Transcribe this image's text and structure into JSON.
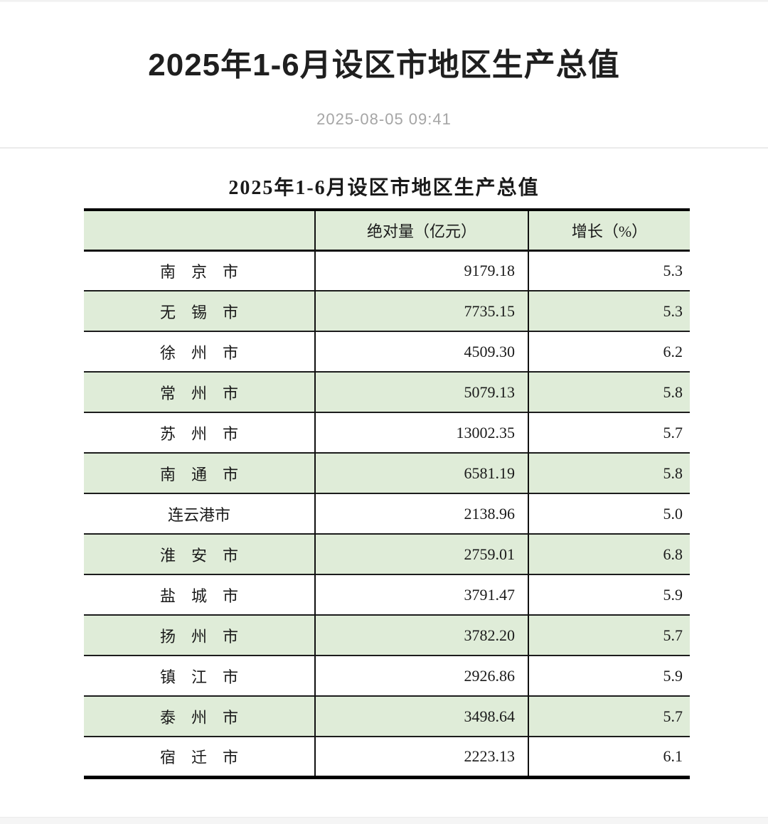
{
  "header": {
    "title": "2025年1-6月设区市地区生产总值",
    "date": "2025-08-05 09:41"
  },
  "table": {
    "title": "2025年1-6月设区市地区生产总值",
    "columns": {
      "city": "",
      "absolute": "绝对量（亿元）",
      "growth": "增长（%）"
    },
    "rows": [
      {
        "city": "南　京　市",
        "value": "9179.18",
        "growth": "5.3"
      },
      {
        "city": "无　锡　市",
        "value": "7735.15",
        "growth": "5.3"
      },
      {
        "city": "徐　州　市",
        "value": "4509.30",
        "growth": "6.2"
      },
      {
        "city": "常　州　市",
        "value": "5079.13",
        "growth": "5.8"
      },
      {
        "city": "苏　州　市",
        "value": "13002.35",
        "growth": "5.7"
      },
      {
        "city": "南　通　市",
        "value": "6581.19",
        "growth": "5.8"
      },
      {
        "city": "连云港市",
        "value": "2138.96",
        "growth": "5.0"
      },
      {
        "city": "淮　安　市",
        "value": "2759.01",
        "growth": "6.8"
      },
      {
        "city": "盐　城　市",
        "value": "3791.47",
        "growth": "5.9"
      },
      {
        "city": "扬　州　市",
        "value": "3782.20",
        "growth": "5.7"
      },
      {
        "city": "镇　江　市",
        "value": "2926.86",
        "growth": "5.9"
      },
      {
        "city": "泰　州　市",
        "value": "3498.64",
        "growth": "5.7"
      },
      {
        "city": "宿　迁　市",
        "value": "2223.13",
        "growth": "6.1"
      }
    ]
  },
  "colors": {
    "row_green": "#dfecd8",
    "table_border": "#000000",
    "title_text": "#1f1f1f",
    "date_gray": "#a5a5a5",
    "divider_gray": "#ebebeb"
  }
}
